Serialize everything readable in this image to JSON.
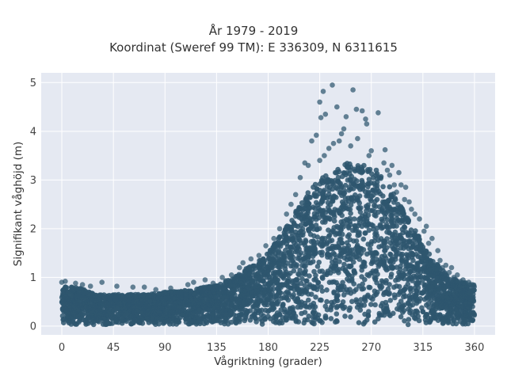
{
  "chart_data": {
    "type": "scatter",
    "title": "År 1979 - 2019",
    "subtitle": "Koordinat (Sweref 99 TM): E 336309, N 6311615",
    "xlabel": "Vågriktning (grader)",
    "ylabel": "Signifikant våghöjd (m)",
    "xlim": [
      -18,
      378
    ],
    "ylim": [
      -0.18,
      5.2
    ],
    "xticks": [
      0,
      45,
      90,
      135,
      180,
      225,
      270,
      315,
      360
    ],
    "yticks": [
      0,
      1,
      2,
      3,
      4,
      5
    ],
    "grid": true,
    "marker_color": "#2e566e",
    "background": "#e5e9f2",
    "envelope": [
      [
        0,
        0.85
      ],
      [
        10,
        0.8
      ],
      [
        20,
        0.75
      ],
      [
        30,
        0.65
      ],
      [
        45,
        0.65
      ],
      [
        60,
        0.65
      ],
      [
        75,
        0.65
      ],
      [
        90,
        0.7
      ],
      [
        105,
        0.72
      ],
      [
        120,
        0.78
      ],
      [
        135,
        0.85
      ],
      [
        150,
        1.0
      ],
      [
        165,
        1.25
      ],
      [
        180,
        1.5
      ],
      [
        195,
        2.0
      ],
      [
        210,
        2.6
      ],
      [
        220,
        2.9
      ],
      [
        230,
        3.1
      ],
      [
        240,
        3.2
      ],
      [
        250,
        3.4
      ],
      [
        260,
        3.3
      ],
      [
        270,
        3.3
      ],
      [
        280,
        3.1
      ],
      [
        290,
        2.7
      ],
      [
        300,
        2.3
      ],
      [
        310,
        1.9
      ],
      [
        320,
        1.5
      ],
      [
        330,
        1.2
      ],
      [
        340,
        1.0
      ],
      [
        350,
        0.9
      ],
      [
        360,
        0.85
      ]
    ],
    "outliers": [
      [
        236,
        4.95
      ],
      [
        254,
        4.85
      ],
      [
        228,
        4.82
      ],
      [
        225,
        4.6
      ],
      [
        240,
        4.5
      ],
      [
        257,
        4.45
      ],
      [
        262,
        4.42
      ],
      [
        276,
        4.38
      ],
      [
        230,
        4.35
      ],
      [
        265,
        4.25
      ],
      [
        226,
        4.28
      ],
      [
        266,
        4.15
      ],
      [
        248,
        4.3
      ],
      [
        218,
        3.8
      ],
      [
        222,
        3.92
      ],
      [
        246,
        4.05
      ],
      [
        244,
        3.95
      ],
      [
        282,
        3.62
      ],
      [
        212,
        3.35
      ],
      [
        288,
        3.3
      ],
      [
        294,
        3.15
      ],
      [
        296,
        2.9
      ],
      [
        300,
        2.85
      ],
      [
        305,
        2.4
      ],
      [
        312,
        2.2
      ],
      [
        318,
        2.05
      ],
      [
        323,
        1.8
      ],
      [
        328,
        1.55
      ],
      [
        340,
        1.2
      ],
      [
        345,
        1.05
      ],
      [
        225,
        3.4
      ],
      [
        215,
        3.3
      ],
      [
        208,
        3.05
      ],
      [
        270,
        3.6
      ],
      [
        258,
        3.85
      ],
      [
        252,
        3.7
      ],
      [
        233,
        3.65
      ],
      [
        242,
        3.8
      ],
      [
        237,
        3.75
      ],
      [
        281,
        3.35
      ],
      [
        286,
        3.1
      ],
      [
        299,
        2.6
      ],
      [
        303,
        2.55
      ],
      [
        308,
        2.3
      ],
      [
        316,
        1.95
      ],
      [
        320,
        1.7
      ],
      [
        330,
        1.35
      ],
      [
        335,
        1.25
      ],
      [
        0,
        0.9
      ],
      [
        3,
        0.92
      ],
      [
        12,
        0.88
      ],
      [
        18,
        0.85
      ],
      [
        25,
        0.82
      ],
      [
        35,
        0.9
      ],
      [
        48,
        0.82
      ],
      [
        62,
        0.8
      ],
      [
        72,
        0.8
      ],
      [
        82,
        0.75
      ],
      [
        95,
        0.78
      ],
      [
        110,
        0.85
      ],
      [
        115,
        0.9
      ],
      [
        125,
        0.95
      ],
      [
        132,
        0.88
      ],
      [
        140,
        1.0
      ],
      [
        148,
        1.05
      ],
      [
        155,
        1.2
      ],
      [
        158,
        1.3
      ],
      [
        165,
        1.38
      ],
      [
        172,
        1.45
      ],
      [
        178,
        1.65
      ],
      [
        185,
        1.8
      ],
      [
        190,
        2.0
      ],
      [
        196,
        2.3
      ],
      [
        200,
        2.5
      ],
      [
        204,
        2.7
      ],
      [
        350,
        0.95
      ],
      [
        355,
        0.9
      ],
      [
        358,
        0.85
      ],
      [
        332,
        1.2
      ],
      [
        338,
        1.1
      ],
      [
        342,
        1.0
      ],
      [
        292,
        2.75
      ],
      [
        284,
        3.2
      ],
      [
        268,
        3.5
      ],
      [
        290,
        2.9
      ],
      [
        229,
        3.5
      ]
    ]
  }
}
